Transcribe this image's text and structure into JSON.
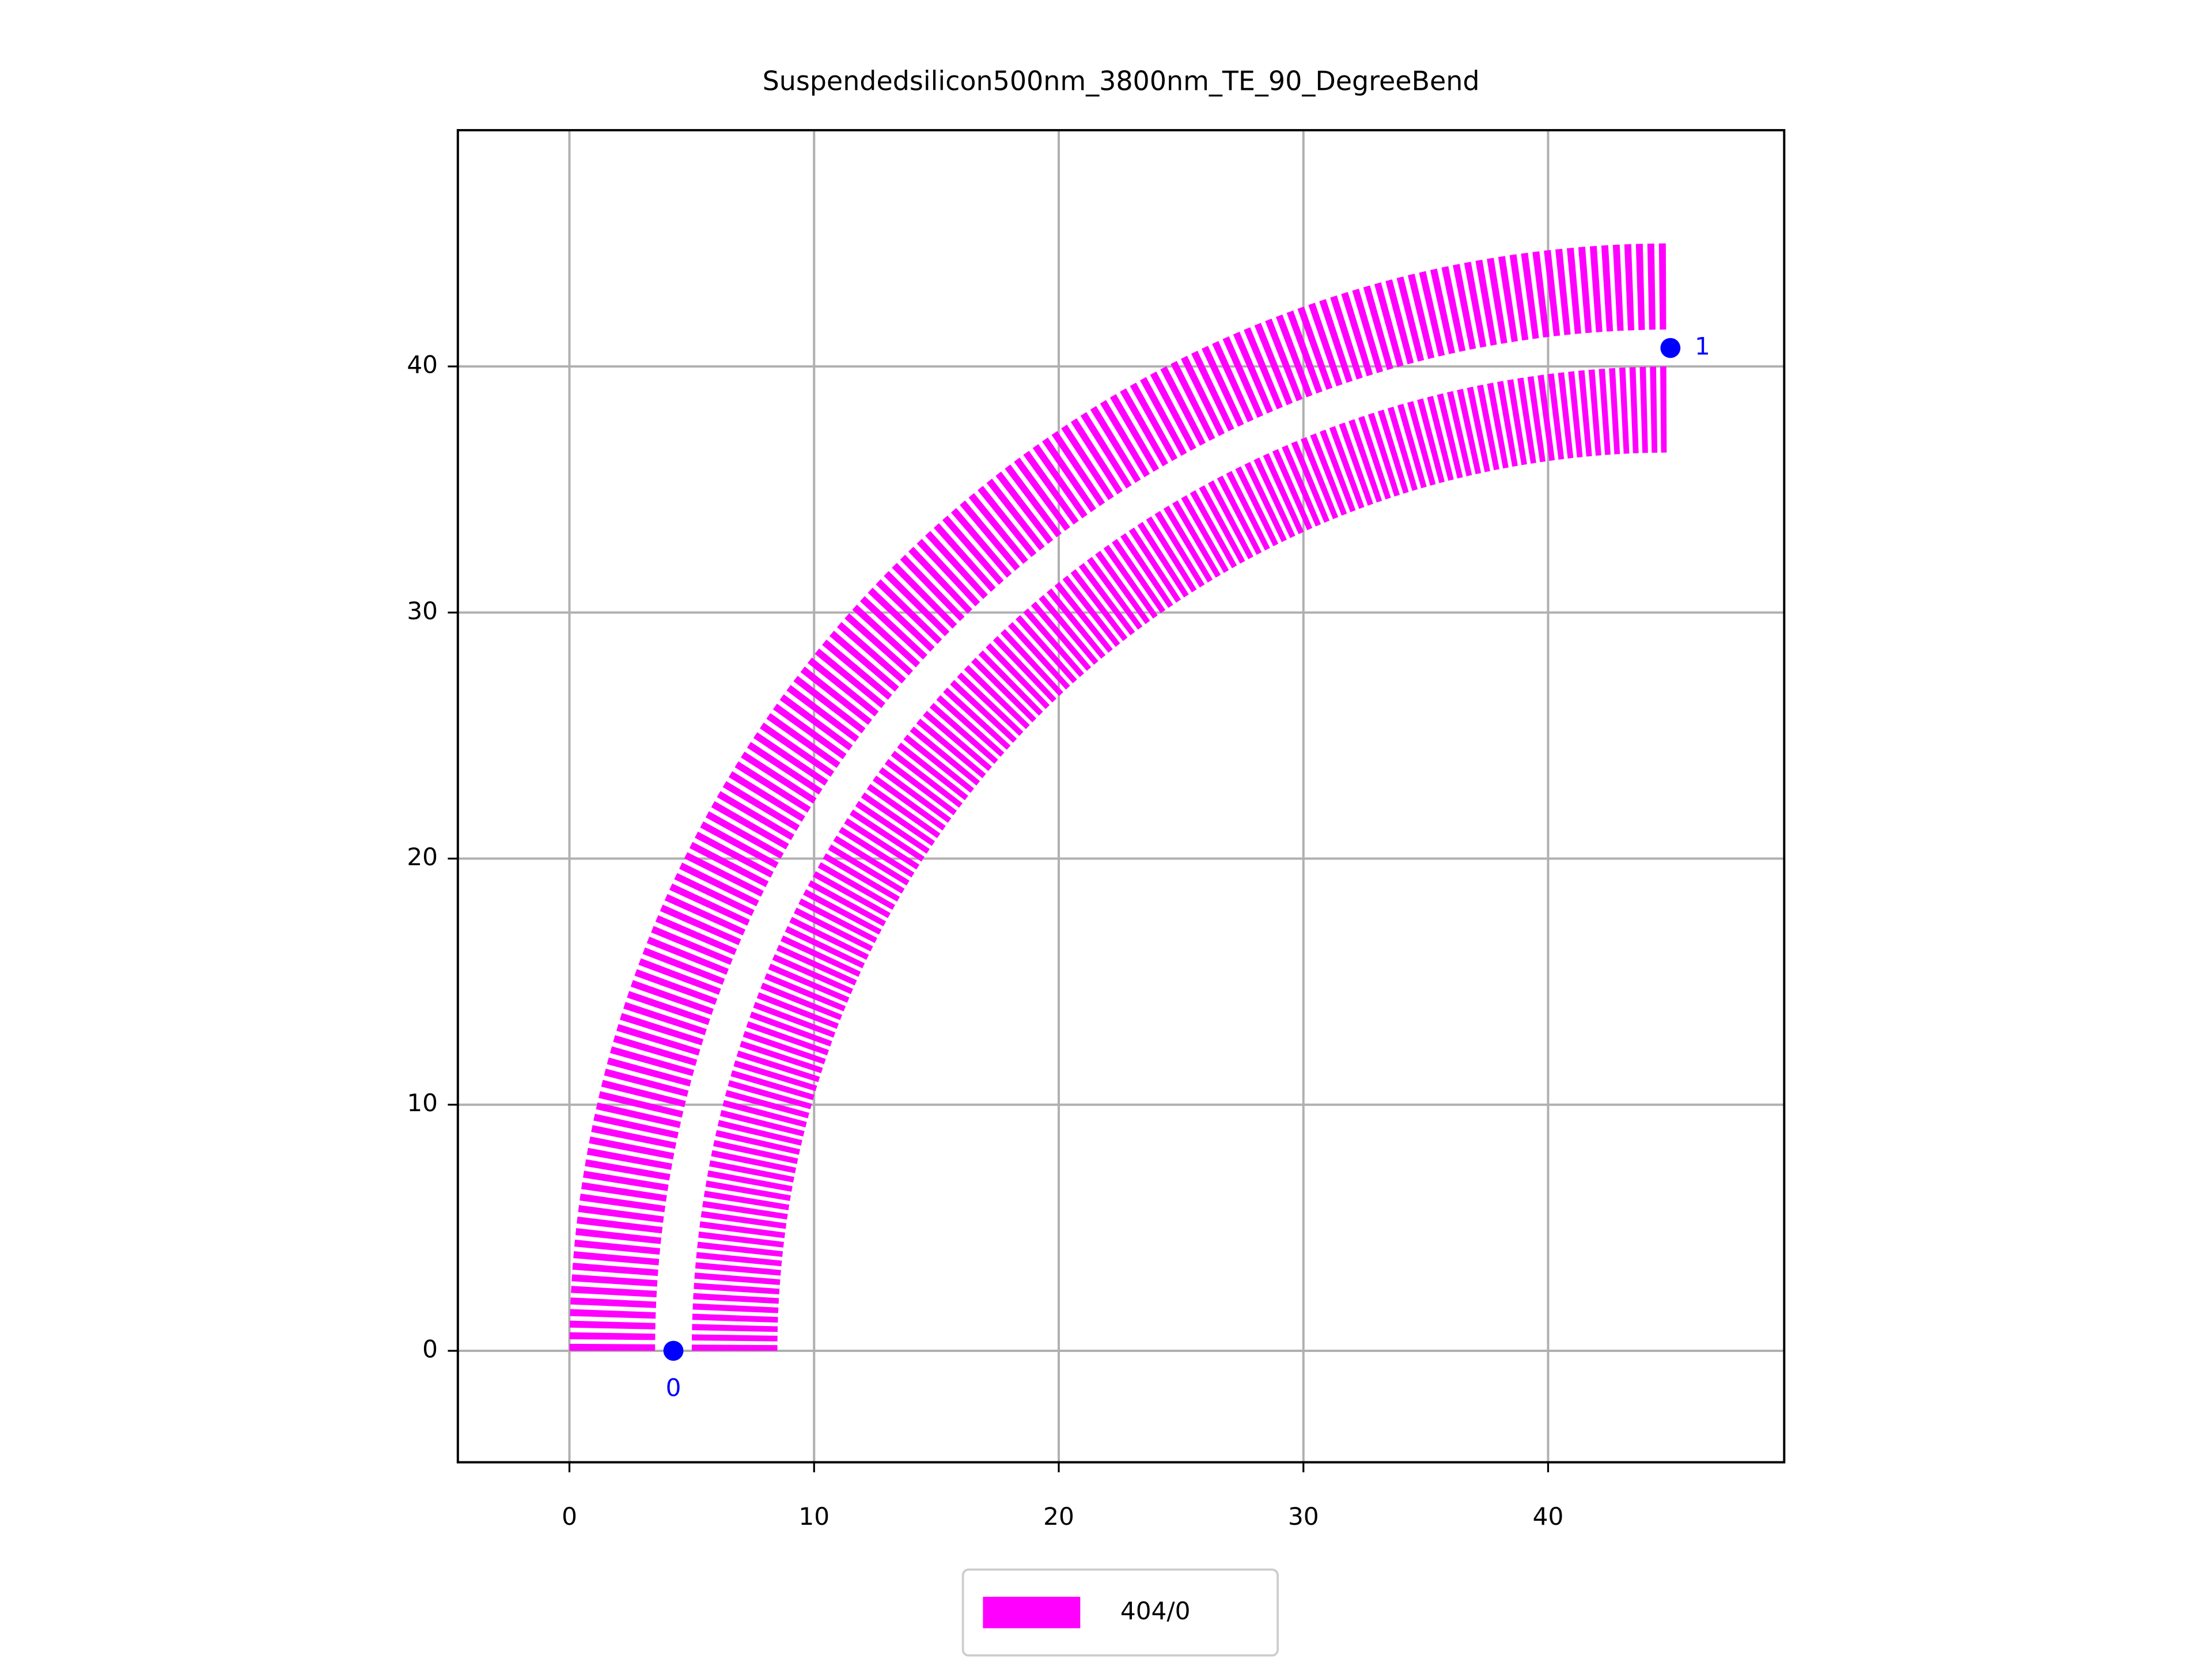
{
  "chart_data": {
    "type": "bend",
    "title": "Suspendedsilicon500nm_3800nm_TE_90_DegreeBend",
    "xlim": [
      -4.56,
      49.65
    ],
    "ylim": [
      -4.53,
      49.6
    ],
    "xticks": [
      0,
      10,
      20,
      30,
      40
    ],
    "yticks": [
      0,
      10,
      20,
      30,
      40
    ],
    "grid": true,
    "layer": {
      "name": "404/0",
      "color": "#ff00ff"
    },
    "center": [
      45,
      0
    ],
    "bands": [
      [
        41.5,
        45
      ],
      [
        36.5,
        40
      ]
    ],
    "angles": [
      180,
      90
    ],
    "segments": 150,
    "duty": 0.6,
    "ports": [
      {
        "name": "0",
        "x": 4.25,
        "y": 0
      },
      {
        "name": "1",
        "x": 45,
        "y": 40.75
      }
    ],
    "port_color": "#0000ff",
    "legend": "lower center"
  }
}
